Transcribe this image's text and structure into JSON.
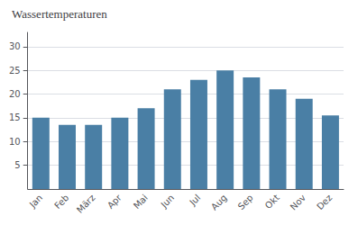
{
  "chart_data": {
    "type": "bar",
    "title": "Wassertemperaturen",
    "categories": [
      "Jan",
      "Feb",
      "März",
      "Apr",
      "Mai",
      "Jun",
      "Jul",
      "Aug",
      "Sep",
      "Okt",
      "Nov",
      "Dez"
    ],
    "values": [
      15.0,
      13.5,
      13.5,
      15.0,
      17.0,
      21.0,
      23.0,
      25.0,
      23.5,
      21.0,
      19.0,
      15.5
    ],
    "color": "#4a7fa5",
    "ylim": [
      0,
      33
    ],
    "yticks": [
      5,
      10,
      15,
      20,
      25,
      30
    ],
    "grid": true
  }
}
